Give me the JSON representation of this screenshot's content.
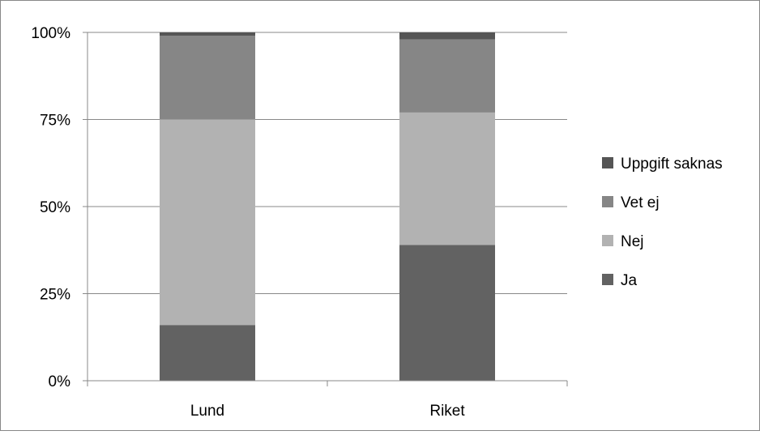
{
  "chart_data": {
    "type": "bar",
    "stacked": true,
    "percent": true,
    "categories": [
      "Lund",
      "Riket"
    ],
    "series": [
      {
        "name": "Ja",
        "values": [
          16,
          39
        ],
        "color": "#626262"
      },
      {
        "name": "Nej",
        "values": [
          59,
          38
        ],
        "color": "#b2b2b2"
      },
      {
        "name": "Vet ej",
        "values": [
          24,
          21
        ],
        "color": "#868686"
      },
      {
        "name": "Uppgift saknas",
        "values": [
          1,
          2
        ],
        "color": "#555555"
      }
    ],
    "ylim": [
      0,
      100
    ],
    "yticks": [
      "0%",
      "25%",
      "50%",
      "75%",
      "100%"
    ],
    "ytick_values": [
      0,
      25,
      50,
      75,
      100
    ],
    "grid": true,
    "legend_position": "right",
    "legend_order": [
      "Uppgift saknas",
      "Vet ej",
      "Nej",
      "Ja"
    ]
  }
}
